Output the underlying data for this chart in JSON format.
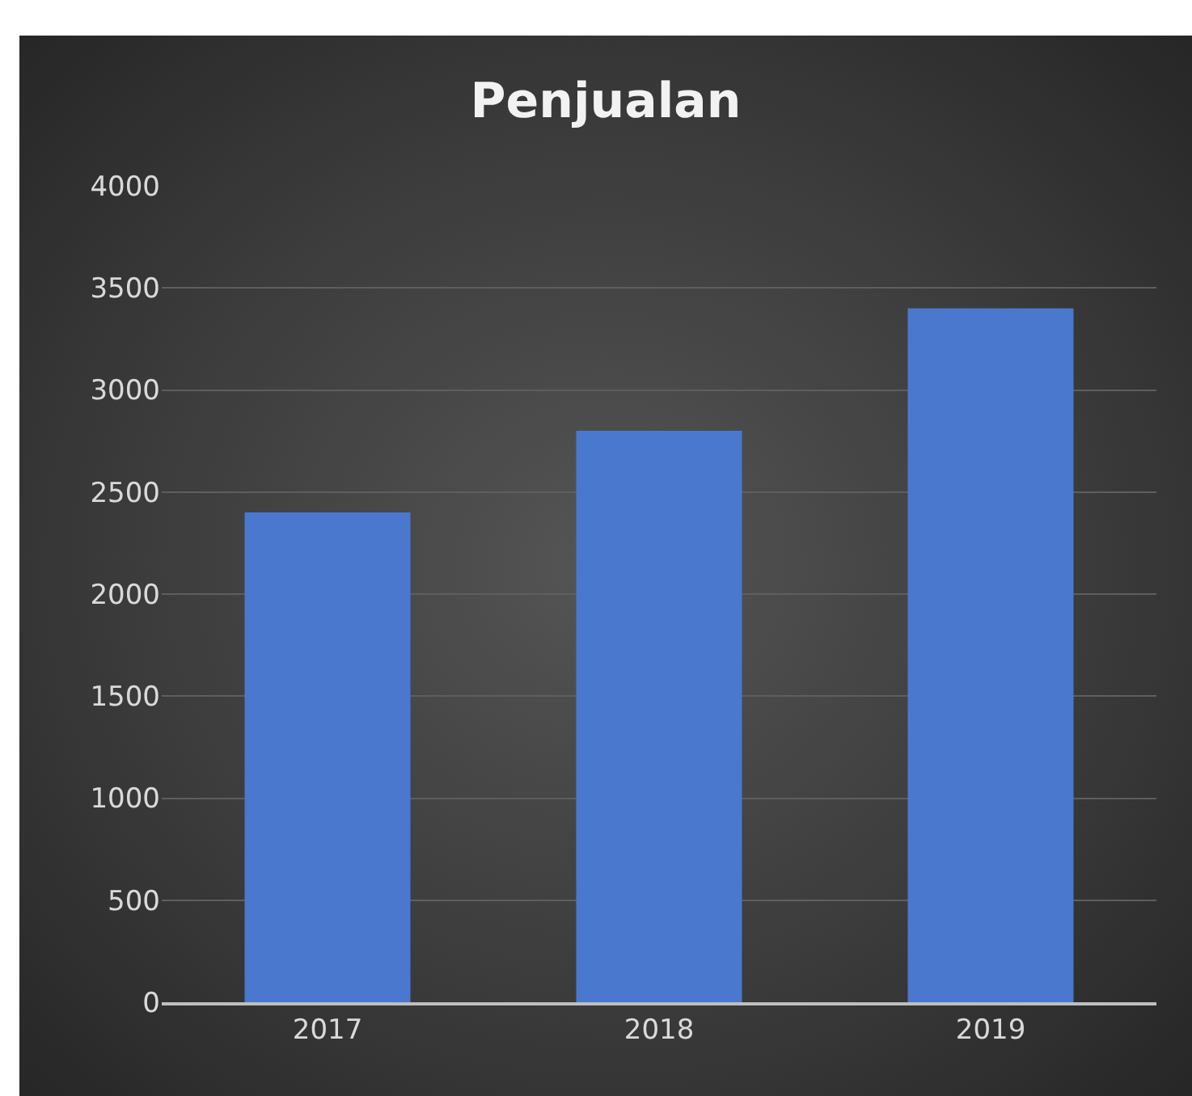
{
  "chart_data": {
    "type": "bar",
    "title": "Penjualan",
    "categories": [
      "2017",
      "2018",
      "2019"
    ],
    "values": [
      2400,
      2800,
      3400
    ],
    "color": "#4a78cf",
    "ylim": [
      0,
      4000
    ],
    "yticks": [
      0,
      500,
      1000,
      1500,
      2000,
      2500,
      3000,
      3500,
      4000
    ],
    "grid": "y",
    "legend": false
  }
}
